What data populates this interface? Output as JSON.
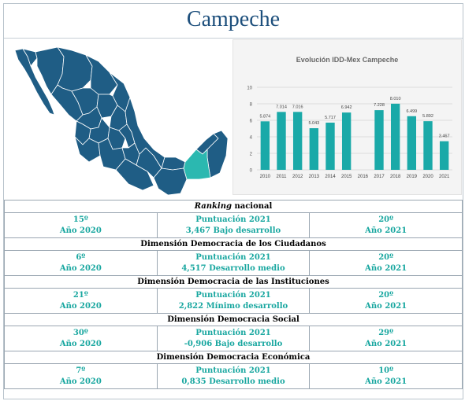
{
  "title": "Campeche",
  "map": {
    "highlight_color": "#2bb8b0",
    "base_color": "#1f5d85"
  },
  "chart_data": {
    "type": "bar",
    "title": "Evolución IDD-Mex Campeche",
    "categories": [
      "2010",
      "2011",
      "2012",
      "2013",
      "2014",
      "2015",
      "2016",
      "2017",
      "2018",
      "2019",
      "2020",
      "2021"
    ],
    "values": [
      5.874,
      7.014,
      7.016,
      5.043,
      5.717,
      6.942,
      7.228,
      8.01,
      6.499,
      5.892,
      3.467
    ],
    "labels": [
      "5.874",
      "7.014",
      "7.016",
      "5.043",
      "5.717",
      "6.942",
      "7.228",
      "8.010",
      "6.499",
      "5.892",
      "3.467"
    ],
    "bar_years": [
      "2010",
      "2011",
      "2012",
      "2013",
      "2014",
      "2015",
      "2017",
      "2018",
      "2019",
      "2020",
      "2021"
    ],
    "ylim": [
      0,
      10
    ],
    "yticks": [
      0,
      2,
      4,
      6,
      8,
      10
    ],
    "grid": true,
    "bar_color": "#1aa9a8"
  },
  "sections": [
    {
      "title_em": "Ranking",
      "title_rest": " nacional",
      "left": [
        "15º",
        "Año 2020"
      ],
      "middle": [
        "Puntuación 2021",
        "3,467 Bajo desarrollo"
      ],
      "right": [
        "20º",
        "Año 2021"
      ]
    },
    {
      "title_em": "",
      "title_rest": "Dimensión Democracia de los Ciudadanos",
      "left": [
        "6º",
        "Año 2020"
      ],
      "middle": [
        "Puntuación 2021",
        "4,517 Desarrollo medio"
      ],
      "right": [
        "20º",
        "Año 2021"
      ]
    },
    {
      "title_em": "",
      "title_rest": "Dimensión Democracia de las Instituciones",
      "left": [
        "21º",
        "Año 2020"
      ],
      "middle": [
        "Puntuación 2021",
        "2,822 Mínimo desarrollo"
      ],
      "right": [
        "20º",
        "Año 2021"
      ]
    },
    {
      "title_em": "",
      "title_rest": "Dimensión Democracia Social",
      "left": [
        "30º",
        "Año 2020"
      ],
      "middle": [
        "Puntuación 2021",
        "-0,906 Bajo desarrollo"
      ],
      "right": [
        "29º",
        "Año 2021"
      ]
    },
    {
      "title_em": "",
      "title_rest": "Dimensión Democracia Económica",
      "left": [
        "7º",
        "Año 2020"
      ],
      "middle": [
        "Puntuación 2021",
        "0,835 Desarrollo medio"
      ],
      "right": [
        "10º",
        "Año 2021"
      ]
    }
  ]
}
